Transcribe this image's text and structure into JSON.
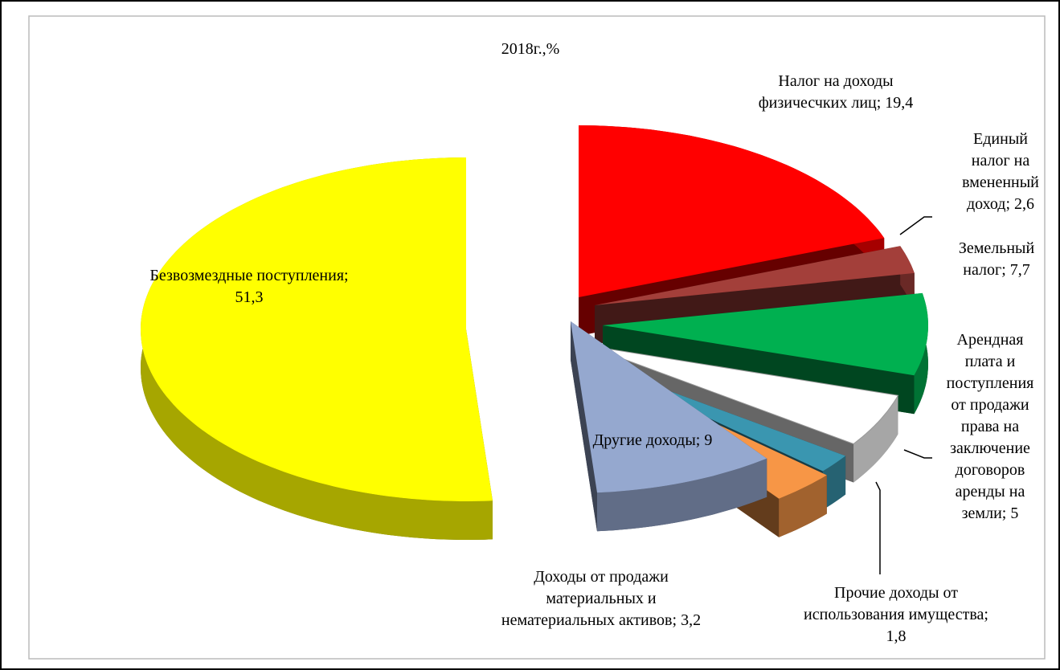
{
  "chart_data": {
    "type": "pie",
    "title": "2018г.,%",
    "categories": [
      "Налог на доходы физичесчких лиц",
      "Единый налог на вмененный доход",
      "Земельный налог",
      "Арендная плата и поступления от продажи права на заключение договоров аренды на земли",
      "Прочие доходы от использования имущества",
      "Доходы от продажи материальных и нематериальных активов",
      "Другие доходы",
      "Безвозмездные поступления"
    ],
    "values": [
      19.4,
      2.6,
      7.7,
      5,
      1.8,
      3.2,
      9,
      51.3
    ],
    "value_labels": [
      "19,4",
      "2,6",
      "7,7",
      "5",
      "1,8",
      "3,2",
      "9",
      "51,3"
    ],
    "label_separator": "; ",
    "colors": [
      "#ff0000",
      "#a33f3a",
      "#00b050",
      "#ffffff",
      "#3a96b0",
      "#f79646",
      "#95a8cf",
      "#ffff00"
    ]
  }
}
